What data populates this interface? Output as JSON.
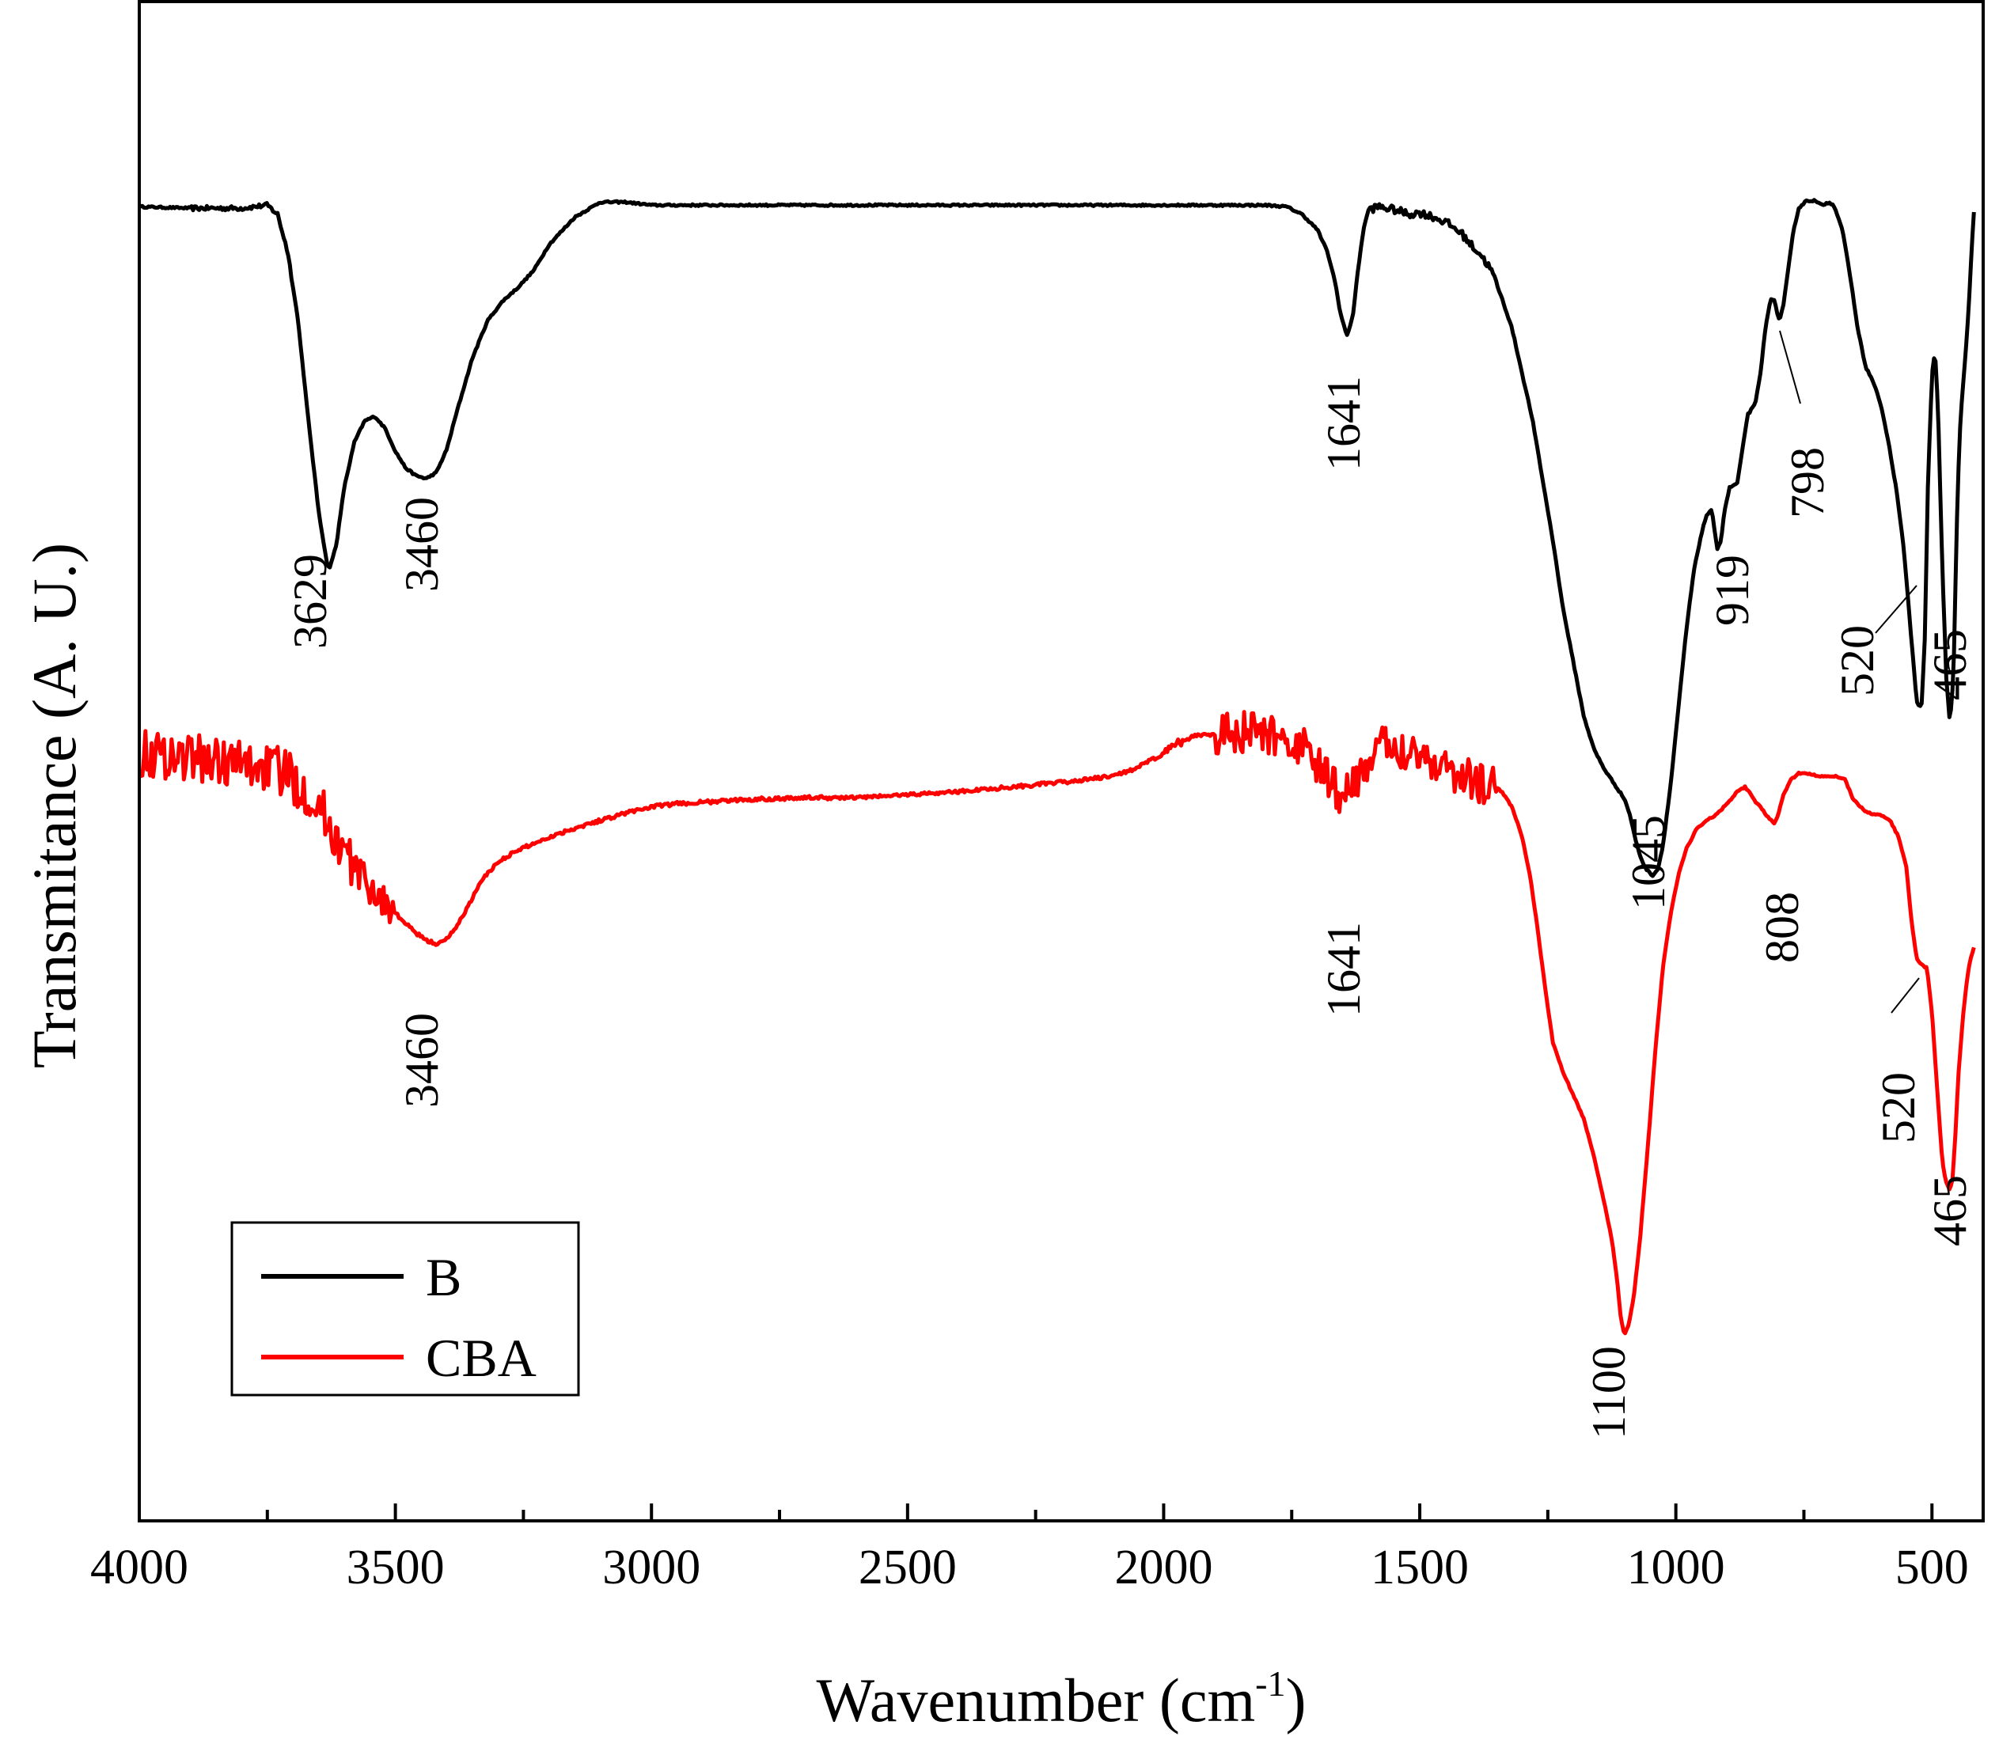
{
  "chart_data": {
    "type": "line",
    "title": "",
    "xlabel": "Wavenumber (cm",
    "xlabel_sup": "-1",
    "xlabel_close": ")",
    "ylabel": "Transmitance (A. U.)",
    "xlim": [
      4000,
      400
    ],
    "ylim": [
      0,
      100
    ],
    "x_reversed": true,
    "xticks": [
      4000,
      3500,
      3000,
      2500,
      2000,
      1500,
      1000,
      500
    ],
    "xtick_labels": [
      "4000",
      "3500",
      "3000",
      "2500",
      "2000",
      "1500",
      "1000",
      "500"
    ],
    "y_ticks_shown": false,
    "grid": false,
    "legend_position": "bottom-left",
    "series": [
      {
        "name": "B",
        "color": "#000000",
        "noise": 0.08,
        "points": [
          [
            4000,
            86.5
          ],
          [
            3900,
            86.4
          ],
          [
            3800,
            86.4
          ],
          [
            3750,
            86.6
          ],
          [
            3730,
            86.0
          ],
          [
            3710,
            83.5
          ],
          [
            3690,
            79.0
          ],
          [
            3670,
            72.5
          ],
          [
            3650,
            66.5
          ],
          [
            3635,
            63.3
          ],
          [
            3629,
            62.6
          ],
          [
            3615,
            64.3
          ],
          [
            3600,
            68.0
          ],
          [
            3580,
            71.0
          ],
          [
            3560,
            72.4
          ],
          [
            3540,
            72.7
          ],
          [
            3520,
            71.9
          ],
          [
            3500,
            70.4
          ],
          [
            3480,
            69.3
          ],
          [
            3460,
            68.8
          ],
          [
            3440,
            68.6
          ],
          [
            3420,
            69.0
          ],
          [
            3400,
            70.5
          ],
          [
            3380,
            73.0
          ],
          [
            3350,
            76.5
          ],
          [
            3320,
            79.0
          ],
          [
            3290,
            80.3
          ],
          [
            3260,
            81.2
          ],
          [
            3230,
            82.3
          ],
          [
            3200,
            84.0
          ],
          [
            3150,
            85.8
          ],
          [
            3100,
            86.8
          ],
          [
            3050,
            86.8
          ],
          [
            3000,
            86.6
          ],
          [
            2950,
            86.6
          ],
          [
            2900,
            86.6
          ],
          [
            2800,
            86.6
          ],
          [
            2600,
            86.6
          ],
          [
            2400,
            86.6
          ],
          [
            2200,
            86.6
          ],
          [
            2000,
            86.6
          ],
          [
            1800,
            86.6
          ],
          [
            1760,
            86.5
          ],
          [
            1730,
            86.0
          ],
          [
            1700,
            85.0
          ],
          [
            1680,
            83.5
          ],
          [
            1665,
            81.5
          ],
          [
            1655,
            79.5
          ],
          [
            1645,
            78.3
          ],
          [
            1641,
            78.0
          ],
          [
            1630,
            79.5
          ],
          [
            1620,
            82.5
          ],
          [
            1610,
            85.0
          ],
          [
            1600,
            86.3
          ],
          [
            1580,
            86.5
          ],
          [
            1550,
            86.3
          ],
          [
            1520,
            86.0
          ],
          [
            1500,
            86.1
          ],
          [
            1480,
            85.9
          ],
          [
            1450,
            85.5
          ],
          [
            1420,
            84.8
          ],
          [
            1400,
            84.0
          ],
          [
            1380,
            83.3
          ],
          [
            1360,
            82.3
          ],
          [
            1340,
            80.5
          ],
          [
            1320,
            78.5
          ],
          [
            1300,
            75.5
          ],
          [
            1280,
            72.5
          ],
          [
            1260,
            68.5
          ],
          [
            1240,
            64.5
          ],
          [
            1220,
            60.0
          ],
          [
            1200,
            56.5
          ],
          [
            1180,
            53.0
          ],
          [
            1160,
            50.8
          ],
          [
            1140,
            49.5
          ],
          [
            1120,
            48.5
          ],
          [
            1100,
            47.5
          ],
          [
            1090,
            46.5
          ],
          [
            1080,
            45.0
          ],
          [
            1070,
            43.8
          ],
          [
            1060,
            43.0
          ],
          [
            1050,
            42.6
          ],
          [
            1045,
            42.5
          ],
          [
            1035,
            42.9
          ],
          [
            1025,
            44.5
          ],
          [
            1010,
            48.5
          ],
          [
            995,
            53.5
          ],
          [
            980,
            58.5
          ],
          [
            965,
            62.5
          ],
          [
            950,
            65.0
          ],
          [
            940,
            66.2
          ],
          [
            930,
            66.5
          ],
          [
            919,
            64.0
          ],
          [
            912,
            64.5
          ],
          [
            905,
            66.5
          ],
          [
            895,
            68.0
          ],
          [
            880,
            68.3
          ],
          [
            870,
            70.5
          ],
          [
            860,
            72.8
          ],
          [
            845,
            73.5
          ],
          [
            835,
            75.5
          ],
          [
            825,
            78.5
          ],
          [
            815,
            80.5
          ],
          [
            808,
            80.3
          ],
          [
            798,
            79.0
          ],
          [
            790,
            80.0
          ],
          [
            780,
            82.5
          ],
          [
            770,
            85.0
          ],
          [
            760,
            86.4
          ],
          [
            745,
            86.9
          ],
          [
            730,
            86.9
          ],
          [
            715,
            86.6
          ],
          [
            700,
            86.8
          ],
          [
            690,
            86.5
          ],
          [
            675,
            85.0
          ],
          [
            660,
            82.0
          ],
          [
            645,
            78.5
          ],
          [
            630,
            76.0
          ],
          [
            615,
            75.0
          ],
          [
            600,
            73.5
          ],
          [
            585,
            71.0
          ],
          [
            570,
            68.0
          ],
          [
            555,
            64.0
          ],
          [
            540,
            58.0
          ],
          [
            530,
            54.0
          ],
          [
            524,
            53.5
          ],
          [
            520,
            53.8
          ],
          [
            514,
            58.0
          ],
          [
            508,
            68.0
          ],
          [
            500,
            75.5
          ],
          [
            494,
            77.0
          ],
          [
            488,
            73.0
          ],
          [
            480,
            63.0
          ],
          [
            472,
            55.5
          ],
          [
            465,
            52.5
          ],
          [
            458,
            55.5
          ],
          [
            452,
            65.0
          ],
          [
            446,
            71.5
          ],
          [
            440,
            74.5
          ],
          [
            434,
            77.0
          ],
          [
            428,
            80.0
          ],
          [
            422,
            84.0
          ],
          [
            417,
            86.7
          ]
        ]
      },
      {
        "name": "CBA",
        "color": "#ff0000",
        "noise": 0.8,
        "points": [
          [
            4000,
            50.5
          ],
          [
            3950,
            50.4
          ],
          [
            3900,
            50.3
          ],
          [
            3850,
            50.0
          ],
          [
            3800,
            49.8
          ],
          [
            3750,
            49.6
          ],
          [
            3720,
            49.3
          ],
          [
            3700,
            48.8
          ],
          [
            3680,
            48.2
          ],
          [
            3660,
            47.5
          ],
          [
            3640,
            46.5
          ],
          [
            3620,
            45.2
          ],
          [
            3600,
            44.0
          ],
          [
            3580,
            43.0
          ],
          [
            3560,
            42.2
          ],
          [
            3540,
            41.3
          ],
          [
            3520,
            40.7
          ],
          [
            3500,
            40.0
          ],
          [
            3480,
            39.3
          ],
          [
            3460,
            38.7
          ],
          [
            3440,
            38.2
          ],
          [
            3420,
            38.0
          ],
          [
            3405,
            38.1
          ],
          [
            3390,
            38.7
          ],
          [
            3370,
            39.7
          ],
          [
            3350,
            41.0
          ],
          [
            3330,
            42.2
          ],
          [
            3310,
            43.0
          ],
          [
            3290,
            43.6
          ],
          [
            3250,
            44.3
          ],
          [
            3200,
            45.0
          ],
          [
            3150,
            45.6
          ],
          [
            3100,
            46.1
          ],
          [
            3050,
            46.6
          ],
          [
            3000,
            47.0
          ],
          [
            2950,
            47.2
          ],
          [
            2900,
            47.3
          ],
          [
            2800,
            47.5
          ],
          [
            2700,
            47.6
          ],
          [
            2600,
            47.6
          ],
          [
            2500,
            47.8
          ],
          [
            2400,
            48.0
          ],
          [
            2300,
            48.3
          ],
          [
            2200,
            48.6
          ],
          [
            2100,
            49.0
          ],
          [
            2050,
            49.6
          ],
          [
            2000,
            50.5
          ],
          [
            1970,
            51.2
          ],
          [
            1940,
            51.7
          ],
          [
            1900,
            51.8
          ],
          [
            1860,
            51.9
          ],
          [
            1820,
            51.8
          ],
          [
            1780,
            51.6
          ],
          [
            1750,
            51.3
          ],
          [
            1720,
            50.6
          ],
          [
            1700,
            49.8
          ],
          [
            1680,
            48.8
          ],
          [
            1665,
            48.2
          ],
          [
            1655,
            48.0
          ],
          [
            1641,
            47.8
          ],
          [
            1630,
            48.5
          ],
          [
            1610,
            49.6
          ],
          [
            1590,
            50.5
          ],
          [
            1570,
            50.9
          ],
          [
            1550,
            51.0
          ],
          [
            1520,
            50.8
          ],
          [
            1500,
            50.5
          ],
          [
            1480,
            50.2
          ],
          [
            1460,
            49.8
          ],
          [
            1440,
            49.5
          ],
          [
            1420,
            49.0
          ],
          [
            1400,
            48.7
          ],
          [
            1380,
            48.5
          ],
          [
            1350,
            48.3
          ],
          [
            1340,
            48.0
          ],
          [
            1320,
            47.0
          ],
          [
            1300,
            45.0
          ],
          [
            1285,
            42.5
          ],
          [
            1270,
            39.0
          ],
          [
            1255,
            35.0
          ],
          [
            1240,
            31.5
          ],
          [
            1220,
            29.5
          ],
          [
            1200,
            28.0
          ],
          [
            1180,
            26.5
          ],
          [
            1160,
            24.0
          ],
          [
            1140,
            21.0
          ],
          [
            1125,
            18.5
          ],
          [
            1115,
            16.0
          ],
          [
            1108,
            13.5
          ],
          [
            1102,
            12.5
          ],
          [
            1100,
            12.3
          ],
          [
            1092,
            12.9
          ],
          [
            1082,
            14.8
          ],
          [
            1070,
            18.5
          ],
          [
            1055,
            24.5
          ],
          [
            1040,
            31.0
          ],
          [
            1025,
            36.5
          ],
          [
            1010,
            40.0
          ],
          [
            995,
            42.5
          ],
          [
            980,
            44.2
          ],
          [
            960,
            45.5
          ],
          [
            940,
            46.1
          ],
          [
            920,
            46.5
          ],
          [
            900,
            47.2
          ],
          [
            880,
            48.0
          ],
          [
            865,
            48.3
          ],
          [
            855,
            47.9
          ],
          [
            845,
            47.3
          ],
          [
            835,
            47.0
          ],
          [
            820,
            46.3
          ],
          [
            810,
            46.0
          ],
          [
            808,
            45.9
          ],
          [
            800,
            46.5
          ],
          [
            790,
            47.8
          ],
          [
            775,
            48.8
          ],
          [
            760,
            49.2
          ],
          [
            740,
            49.2
          ],
          [
            720,
            49.0
          ],
          [
            700,
            49.0
          ],
          [
            685,
            49.0
          ],
          [
            670,
            48.8
          ],
          [
            655,
            47.6
          ],
          [
            640,
            47.0
          ],
          [
            625,
            46.6
          ],
          [
            610,
            46.5
          ],
          [
            595,
            46.4
          ],
          [
            580,
            46.0
          ],
          [
            565,
            45.0
          ],
          [
            550,
            43.0
          ],
          [
            540,
            39.5
          ],
          [
            530,
            37.0
          ],
          [
            520,
            36.6
          ],
          [
            510,
            36.4
          ],
          [
            500,
            33.5
          ],
          [
            490,
            28.5
          ],
          [
            480,
            23.8
          ],
          [
            474,
            22.5
          ],
          [
            468,
            22.0
          ],
          [
            465,
            21.8
          ],
          [
            460,
            22.5
          ],
          [
            455,
            25.0
          ],
          [
            448,
            29.5
          ],
          [
            440,
            33.0
          ],
          [
            432,
            35.5
          ],
          [
            425,
            37.0
          ],
          [
            417,
            37.8
          ]
        ]
      }
    ],
    "annotations": [
      {
        "series": "B",
        "text": "3629",
        "x": 3629
      },
      {
        "series": "B",
        "text": "3460",
        "x": 3460
      },
      {
        "series": "B",
        "text": "1641",
        "x": 1641
      },
      {
        "series": "B",
        "text": "1045",
        "x": 1045
      },
      {
        "series": "B",
        "text": "919",
        "x": 919
      },
      {
        "series": "B",
        "text": "798",
        "x": 798
      },
      {
        "series": "B",
        "text": "520",
        "x": 520
      },
      {
        "series": "B",
        "text": "465",
        "x": 465
      },
      {
        "series": "CBA",
        "text": "3460",
        "x": 3460
      },
      {
        "series": "CBA",
        "text": "1641",
        "x": 1641
      },
      {
        "series": "CBA",
        "text": "1100",
        "x": 1100
      },
      {
        "series": "CBA",
        "text": "808",
        "x": 808
      },
      {
        "series": "CBA",
        "text": "520",
        "x": 520
      },
      {
        "series": "CBA",
        "text": "465",
        "x": 465
      }
    ],
    "legend": [
      {
        "label": "B",
        "color": "#000000"
      },
      {
        "label": "CBA",
        "color": "#ff0000"
      }
    ]
  }
}
